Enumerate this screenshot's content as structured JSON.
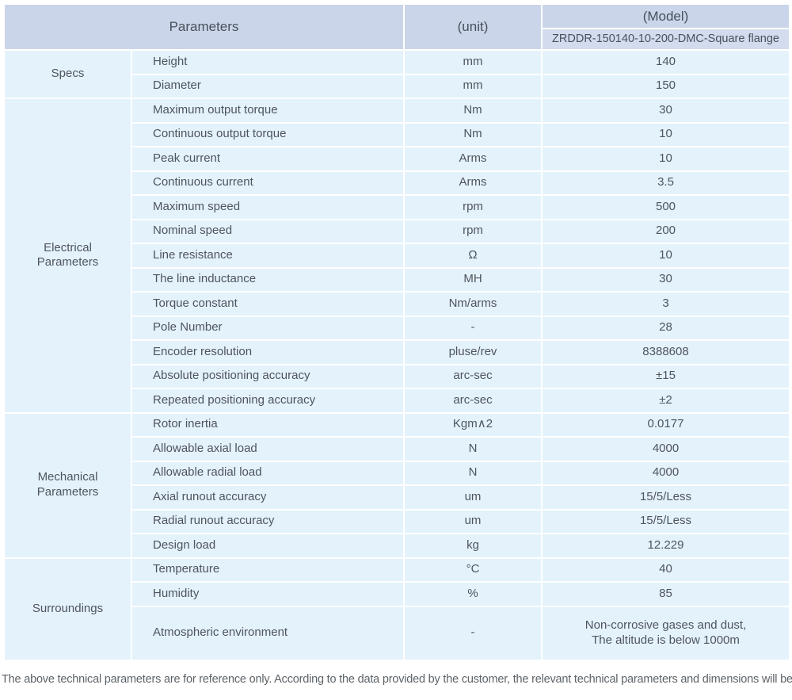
{
  "header": {
    "parameters_label": "Parameters",
    "unit_label": "(unit)",
    "model_label": "(Model)",
    "model_value": "ZRDDR-150140-10-200-DMC-Square flange"
  },
  "sections": [
    {
      "name": "Specs",
      "rows": [
        {
          "param": "Height",
          "unit": "mm",
          "value": "140"
        },
        {
          "param": "Diameter",
          "unit": "mm",
          "value": "150"
        }
      ]
    },
    {
      "name": "Electrical\nParameters",
      "rows": [
        {
          "param": "Maximum output torque",
          "unit": "Nm",
          "value": "30"
        },
        {
          "param": "Continuous output torque",
          "unit": "Nm",
          "value": "10"
        },
        {
          "param": "Peak current",
          "unit": "Arms",
          "value": "10"
        },
        {
          "param": "Continuous current",
          "unit": "Arms",
          "value": "3.5"
        },
        {
          "param": "Maximum speed",
          "unit": "rpm",
          "value": "500"
        },
        {
          "param": "Nominal speed",
          "unit": "rpm",
          "value": "200"
        },
        {
          "param": "Line resistance",
          "unit": "Ω",
          "value": "10"
        },
        {
          "param": "The line inductance",
          "unit": "MH",
          "value": "30"
        },
        {
          "param": "Torque constant",
          "unit": "Nm/arms",
          "value": "3"
        },
        {
          "param": "Pole Number",
          "unit": "-",
          "value": "28"
        },
        {
          "param": "Encoder resolution",
          "unit": "pluse/rev",
          "value": "8388608"
        },
        {
          "param": "Absolute positioning accuracy",
          "unit": "arc-sec",
          "value": "±15"
        },
        {
          "param": "Repeated positioning accuracy",
          "unit": "arc-sec",
          "value": "±2"
        }
      ]
    },
    {
      "name": "Mechanical\nParameters",
      "rows": [
        {
          "param": "Rotor inertia",
          "unit": "Kgm∧2",
          "value": "0.0177"
        },
        {
          "param": "Allowable axial load",
          "unit": "N",
          "value": "4000"
        },
        {
          "param": "Allowable radial load",
          "unit": "N",
          "value": "4000"
        },
        {
          "param": "Axial runout accuracy",
          "unit": "um",
          "value": "15/5/Less"
        },
        {
          "param": "Radial runout accuracy",
          "unit": "um",
          "value": "15/5/Less"
        },
        {
          "param": "Design load",
          "unit": "kg",
          "value": "12.229"
        }
      ]
    },
    {
      "name": "Surroundings",
      "rows": [
        {
          "param": "Temperature",
          "unit": "°C",
          "value": "40"
        },
        {
          "param": "Humidity",
          "unit": "%",
          "value": "85"
        },
        {
          "param": "Atmospheric environment",
          "unit": "-",
          "value": "Non-corrosive gases and dust,\nThe altitude is below 1000m"
        }
      ]
    }
  ],
  "footer": {
    "note": "The above technical parameters are for reference only. According to the data provided by the customer, the relevant technical parameters and dimensions will be issued."
  },
  "colors": {
    "header_bg": "#cbd5e9",
    "model_row_bg": "#d2dcee",
    "cell_bg": "#e4f2fb",
    "header_text": "#49505c",
    "body_text": "#4e555e",
    "footer_text": "#5d6368"
  }
}
